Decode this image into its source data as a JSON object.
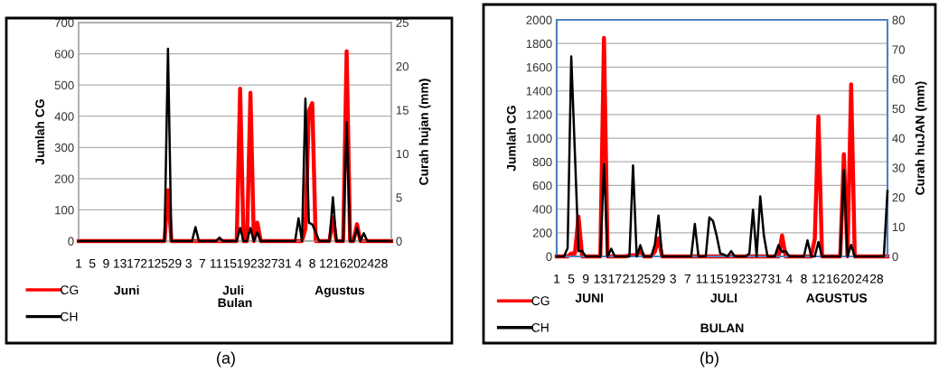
{
  "chart_data": [
    {
      "type": "line",
      "ylabel": "Jumlah CG",
      "y2label": "Curah hujan (mm)",
      "xlabel": "Bulan",
      "categories": [
        "1",
        null,
        null,
        null,
        "5",
        null,
        null,
        null,
        "9",
        null,
        null,
        null,
        "13",
        null,
        null,
        null,
        "17",
        null,
        null,
        null,
        "21",
        null,
        null,
        null,
        "25",
        null,
        null,
        null,
        "29",
        null,
        null,
        null,
        "3",
        null,
        null,
        null,
        "7",
        null,
        null,
        null,
        "11",
        null,
        null,
        null,
        "15",
        null,
        null,
        null,
        "19",
        null,
        null,
        null,
        "23",
        null,
        null,
        null,
        "27",
        null,
        null,
        null,
        "31",
        null,
        null,
        null,
        "4",
        null,
        null,
        null,
        "8",
        null,
        null,
        null,
        "12",
        null,
        null,
        null,
        "16",
        null,
        null,
        null,
        "20",
        null,
        null,
        null,
        "24",
        null,
        null,
        null,
        "28",
        null,
        null,
        null
      ],
      "series": [
        {
          "name": "CG",
          "color": "#ff0000",
          "values": [
            0,
            0,
            0,
            0,
            0,
            0,
            0,
            0,
            0,
            0,
            0,
            0,
            0,
            0,
            0,
            0,
            0,
            0,
            0,
            0,
            0,
            0,
            0,
            0,
            0,
            0,
            163,
            0,
            0,
            0,
            0,
            0,
            0,
            0,
            0,
            0,
            0,
            0,
            0,
            0,
            0,
            0,
            0,
            0,
            0,
            0,
            0,
            488,
            0,
            0,
            475,
            0,
            59,
            0,
            0,
            0,
            0,
            0,
            0,
            0,
            0,
            0,
            0,
            0,
            0,
            0,
            40,
            416,
            442,
            0,
            0,
            0,
            0,
            0,
            75,
            0,
            0,
            0,
            608,
            0,
            0,
            54,
            0,
            0,
            0,
            0,
            0,
            0,
            0,
            0,
            0,
            0
          ]
        },
        {
          "name": "CH",
          "color": "#000000",
          "axis": "y2",
          "values": [
            0,
            0,
            0,
            0,
            0,
            0,
            0,
            0,
            0,
            0,
            0,
            0,
            0,
            0,
            0,
            0,
            0,
            0,
            0,
            0,
            0,
            0,
            0,
            0,
            0,
            0,
            22,
            0,
            0,
            0,
            0,
            0,
            0,
            0,
            1.6,
            0,
            0,
            0,
            0,
            0,
            0,
            0.4,
            0,
            0,
            0,
            0,
            0,
            1.5,
            0,
            0,
            1.5,
            0,
            1.0,
            0,
            0,
            0,
            0,
            0,
            0,
            0,
            0,
            0,
            0,
            0,
            2.6,
            0,
            16.3,
            2.1,
            1.9,
            1.0,
            0,
            0,
            0,
            0,
            5.0,
            0,
            0,
            0,
            13.6,
            0,
            0,
            1.5,
            0,
            0.9,
            0,
            0,
            0,
            0,
            0,
            0,
            0,
            0
          ]
        }
      ],
      "ylim": [
        0,
        700
      ],
      "yticks": [
        0,
        100,
        200,
        300,
        400,
        500,
        600,
        700
      ],
      "y2lim": [
        0,
        25
      ],
      "y2ticks": [
        0,
        5,
        10,
        15,
        20,
        25
      ],
      "grid": "y",
      "legend": "bottom left",
      "annotations": [
        "Juni",
        "Juli",
        "Agustus",
        "(a)"
      ]
    },
    {
      "type": "line",
      "ylabel": "Jumlah CG",
      "y2label": "Curah huJAN (mm)",
      "xlabel": "BULAN",
      "categories": [
        "1",
        null,
        null,
        null,
        "5",
        null,
        null,
        null,
        "9",
        null,
        null,
        null,
        "13",
        null,
        null,
        null,
        "17",
        null,
        null,
        null,
        "21",
        null,
        null,
        null,
        "25",
        null,
        null,
        null,
        "29",
        null,
        null,
        null,
        "3",
        null,
        null,
        null,
        "7",
        null,
        null,
        null,
        "11",
        null,
        null,
        null,
        "15",
        null,
        null,
        null,
        "19",
        null,
        null,
        null,
        "23",
        null,
        null,
        null,
        "27",
        null,
        null,
        null,
        "31",
        null,
        null,
        null,
        "4",
        null,
        null,
        null,
        "8",
        null,
        null,
        null,
        "12",
        null,
        null,
        null,
        "16",
        null,
        null,
        null,
        "20",
        null,
        null,
        null,
        "24",
        null,
        null,
        null,
        "28",
        null,
        null,
        null
      ],
      "series": [
        {
          "name": "CG",
          "color": "#ff0000",
          "values": [
            0,
            0,
            0,
            0,
            25,
            25,
            337,
            0,
            0,
            0,
            0,
            0,
            0,
            1848,
            0,
            0,
            0,
            0,
            0,
            0,
            10,
            10,
            10,
            48,
            0,
            0,
            0,
            40,
            152,
            0,
            0,
            0,
            0,
            0,
            0,
            0,
            0,
            0,
            0,
            0,
            0,
            0,
            0,
            0,
            0,
            0,
            0,
            0,
            0,
            0,
            0,
            0,
            0,
            0,
            0,
            0,
            0,
            0,
            0,
            0,
            0,
            0,
            177,
            0,
            0,
            0,
            0,
            0,
            0,
            0,
            0,
            150,
            1183,
            0,
            0,
            0,
            0,
            0,
            0,
            865,
            0,
            1455,
            0,
            0,
            0,
            0,
            0,
            0,
            0,
            0,
            0,
            0
          ]
        },
        {
          "name": "CH",
          "color": "#000000",
          "axis": "y2",
          "values": [
            0,
            0,
            0,
            2.8,
            67.6,
            35,
            1.8,
            1.8,
            0,
            0,
            0,
            0,
            0,
            31.3,
            0,
            2.6,
            0,
            0,
            0,
            0,
            0,
            30.8,
            0,
            3.8,
            0,
            0,
            0,
            4,
            13.8,
            0,
            0,
            0,
            0,
            0,
            0,
            0,
            0,
            0,
            11.0,
            0,
            0,
            0,
            13.2,
            12.0,
            7,
            1,
            0.6,
            0,
            1.8,
            0,
            0,
            0,
            0,
            1,
            15.8,
            0,
            20.3,
            7,
            0,
            0,
            0,
            3.8,
            1.5,
            1.8,
            0,
            0,
            0,
            0,
            0,
            5.4,
            0,
            0,
            4.9,
            0,
            0,
            0,
            0,
            0,
            0,
            29.2,
            0,
            3.9,
            0,
            0,
            0,
            0,
            0,
            0,
            0,
            0,
            0,
            22.1
          ]
        }
      ],
      "ylim": [
        0,
        2000
      ],
      "yticks": [
        0,
        200,
        400,
        600,
        800,
        1000,
        1200,
        1400,
        1600,
        1800,
        2000
      ],
      "y2lim": [
        0,
        80
      ],
      "y2ticks": [
        0,
        10,
        20,
        30,
        40,
        50,
        60,
        70,
        80
      ],
      "grid": "y",
      "legend": "bottom left",
      "annotations": [
        "JUNI",
        "JULI",
        "AGUSTUS",
        "(b)"
      ]
    }
  ]
}
